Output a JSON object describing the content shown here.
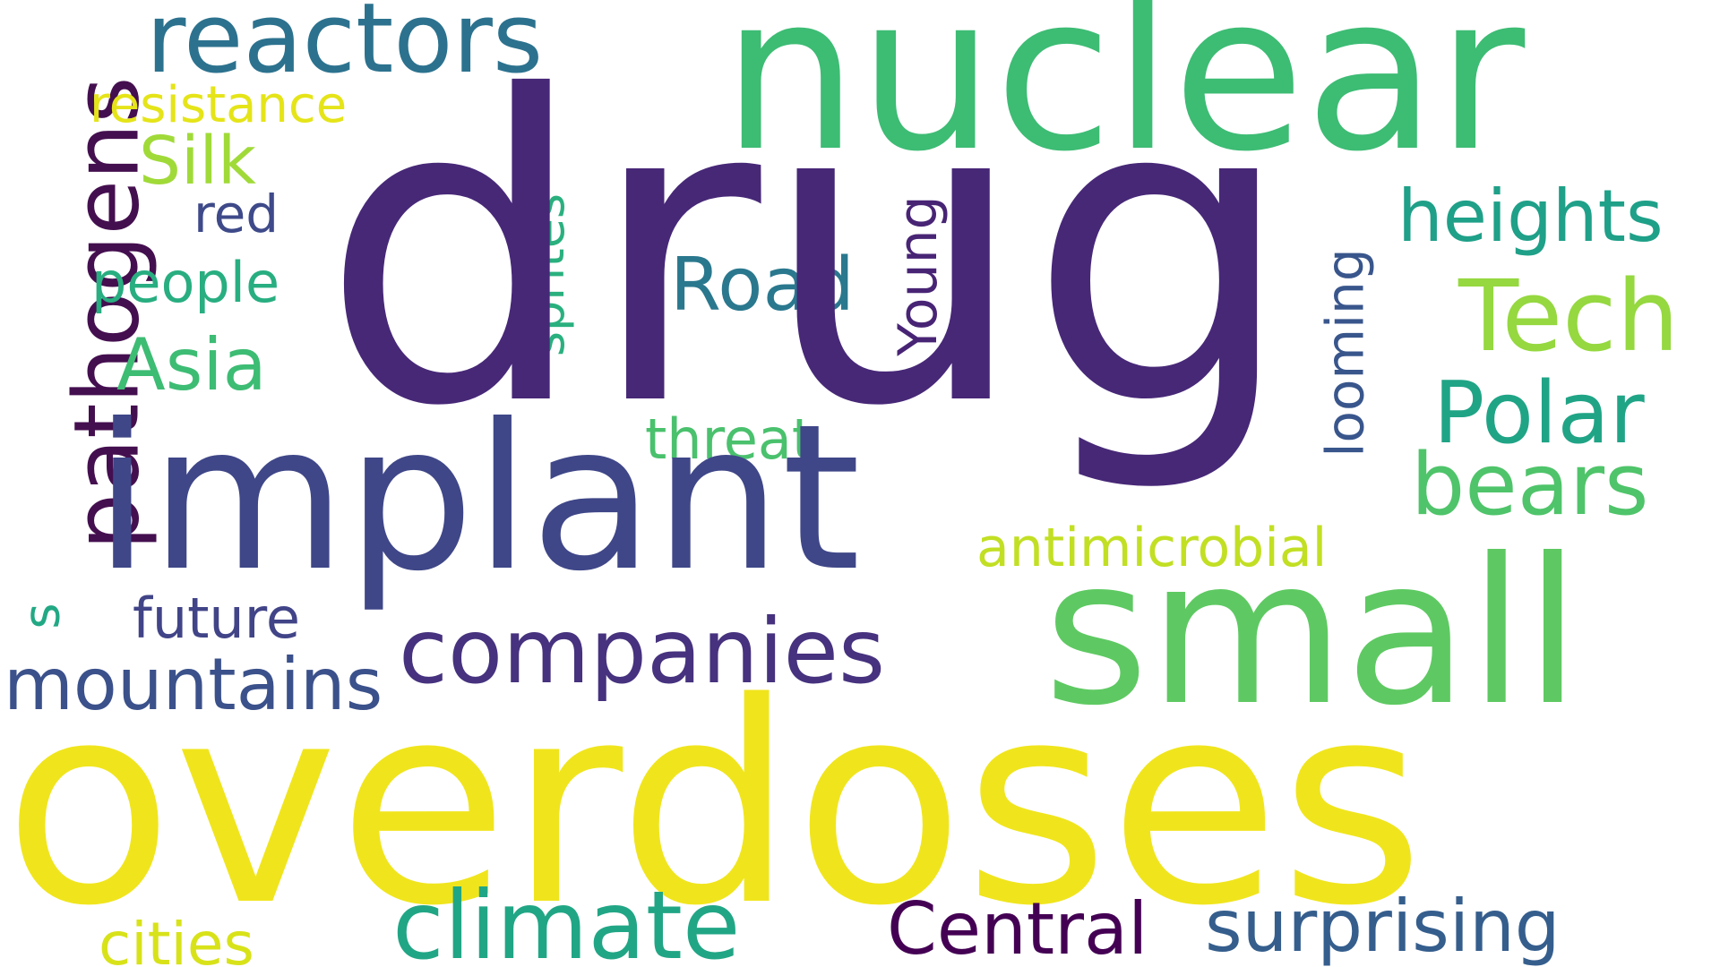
{
  "words": {
    "drug": {
      "text": "drug",
      "color": "#472877"
    },
    "nuclear": {
      "text": "nuclear",
      "color": "#3dbc74"
    },
    "overdoses": {
      "text": "overdoses",
      "color": "#f0e51d"
    },
    "implant": {
      "text": "implant",
      "color": "#3f4788"
    },
    "small": {
      "text": "small",
      "color": "#5ec962"
    },
    "reactors": {
      "text": "reactors",
      "color": "#2c728e"
    },
    "pathogens": {
      "text": "pathogens",
      "color": "#440f4f"
    },
    "companies": {
      "text": "companies",
      "color": "#46327e"
    },
    "climate": {
      "text": "climate",
      "color": "#21a685"
    },
    "tech": {
      "text": "Tech",
      "color": "#95d840"
    },
    "polar": {
      "text": "Polar",
      "color": "#20a486"
    },
    "bears": {
      "text": "bears",
      "color": "#4fc46a"
    },
    "heights": {
      "text": "heights",
      "color": "#1fa088"
    },
    "central": {
      "text": "Central",
      "color": "#440154"
    },
    "surprising": {
      "text": "surprising",
      "color": "#355e8d"
    },
    "mountains": {
      "text": "mountains",
      "color": "#3b518b"
    },
    "road": {
      "text": "Road",
      "color": "#2a788e"
    },
    "asia": {
      "text": "Asia",
      "color": "#3dbc74"
    },
    "silk": {
      "text": "Silk",
      "color": "#a0da39"
    },
    "antimicrobial": {
      "text": "antimicrobial",
      "color": "#c2df23"
    },
    "threat": {
      "text": "threat",
      "color": "#4ac16d"
    },
    "people": {
      "text": "people",
      "color": "#28ae80"
    },
    "future": {
      "text": "future",
      "color": "#414487"
    },
    "cities": {
      "text": "cities",
      "color": "#d8e219"
    },
    "red": {
      "text": "red",
      "color": "#3e4a89"
    },
    "resistance": {
      "text": "resistance",
      "color": "#e5e419"
    },
    "sprites": {
      "text": "sprites",
      "color": "#2ab07f"
    },
    "young": {
      "text": "Young",
      "color": "#482475"
    },
    "looming": {
      "text": "looming",
      "color": "#39568c"
    },
    "s": {
      "text": "s",
      "color": "#22a884"
    }
  }
}
